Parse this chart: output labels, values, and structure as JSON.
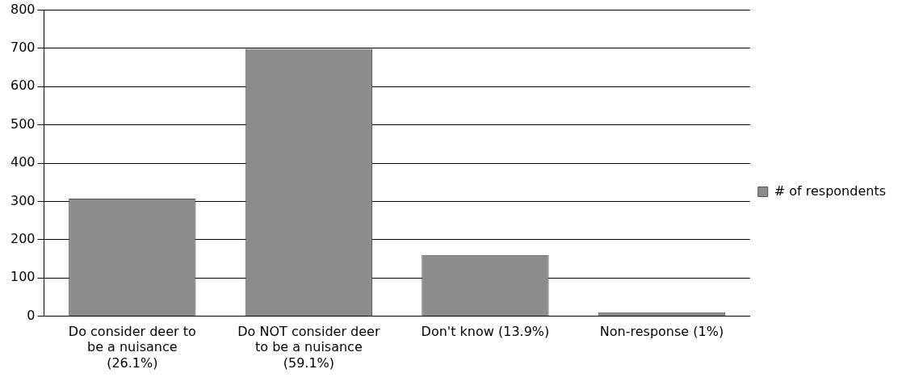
{
  "chart_data": {
    "type": "bar",
    "categories": [
      "Do consider deer to be a nuisance (26.1%)",
      "Do NOT consider deer to be a nuisance (59.1%)",
      "Don't know (13.9%)",
      "Non-response (1%)"
    ],
    "series": [
      {
        "name": "# of respondents",
        "color": "#8c8c8c",
        "values": [
          307,
          699,
          160,
          10
        ]
      }
    ],
    "ylim": [
      0,
      800
    ],
    "yticks": [
      0,
      100,
      200,
      300,
      400,
      500,
      600,
      700,
      800
    ],
    "grid": "y",
    "legend": "right"
  }
}
